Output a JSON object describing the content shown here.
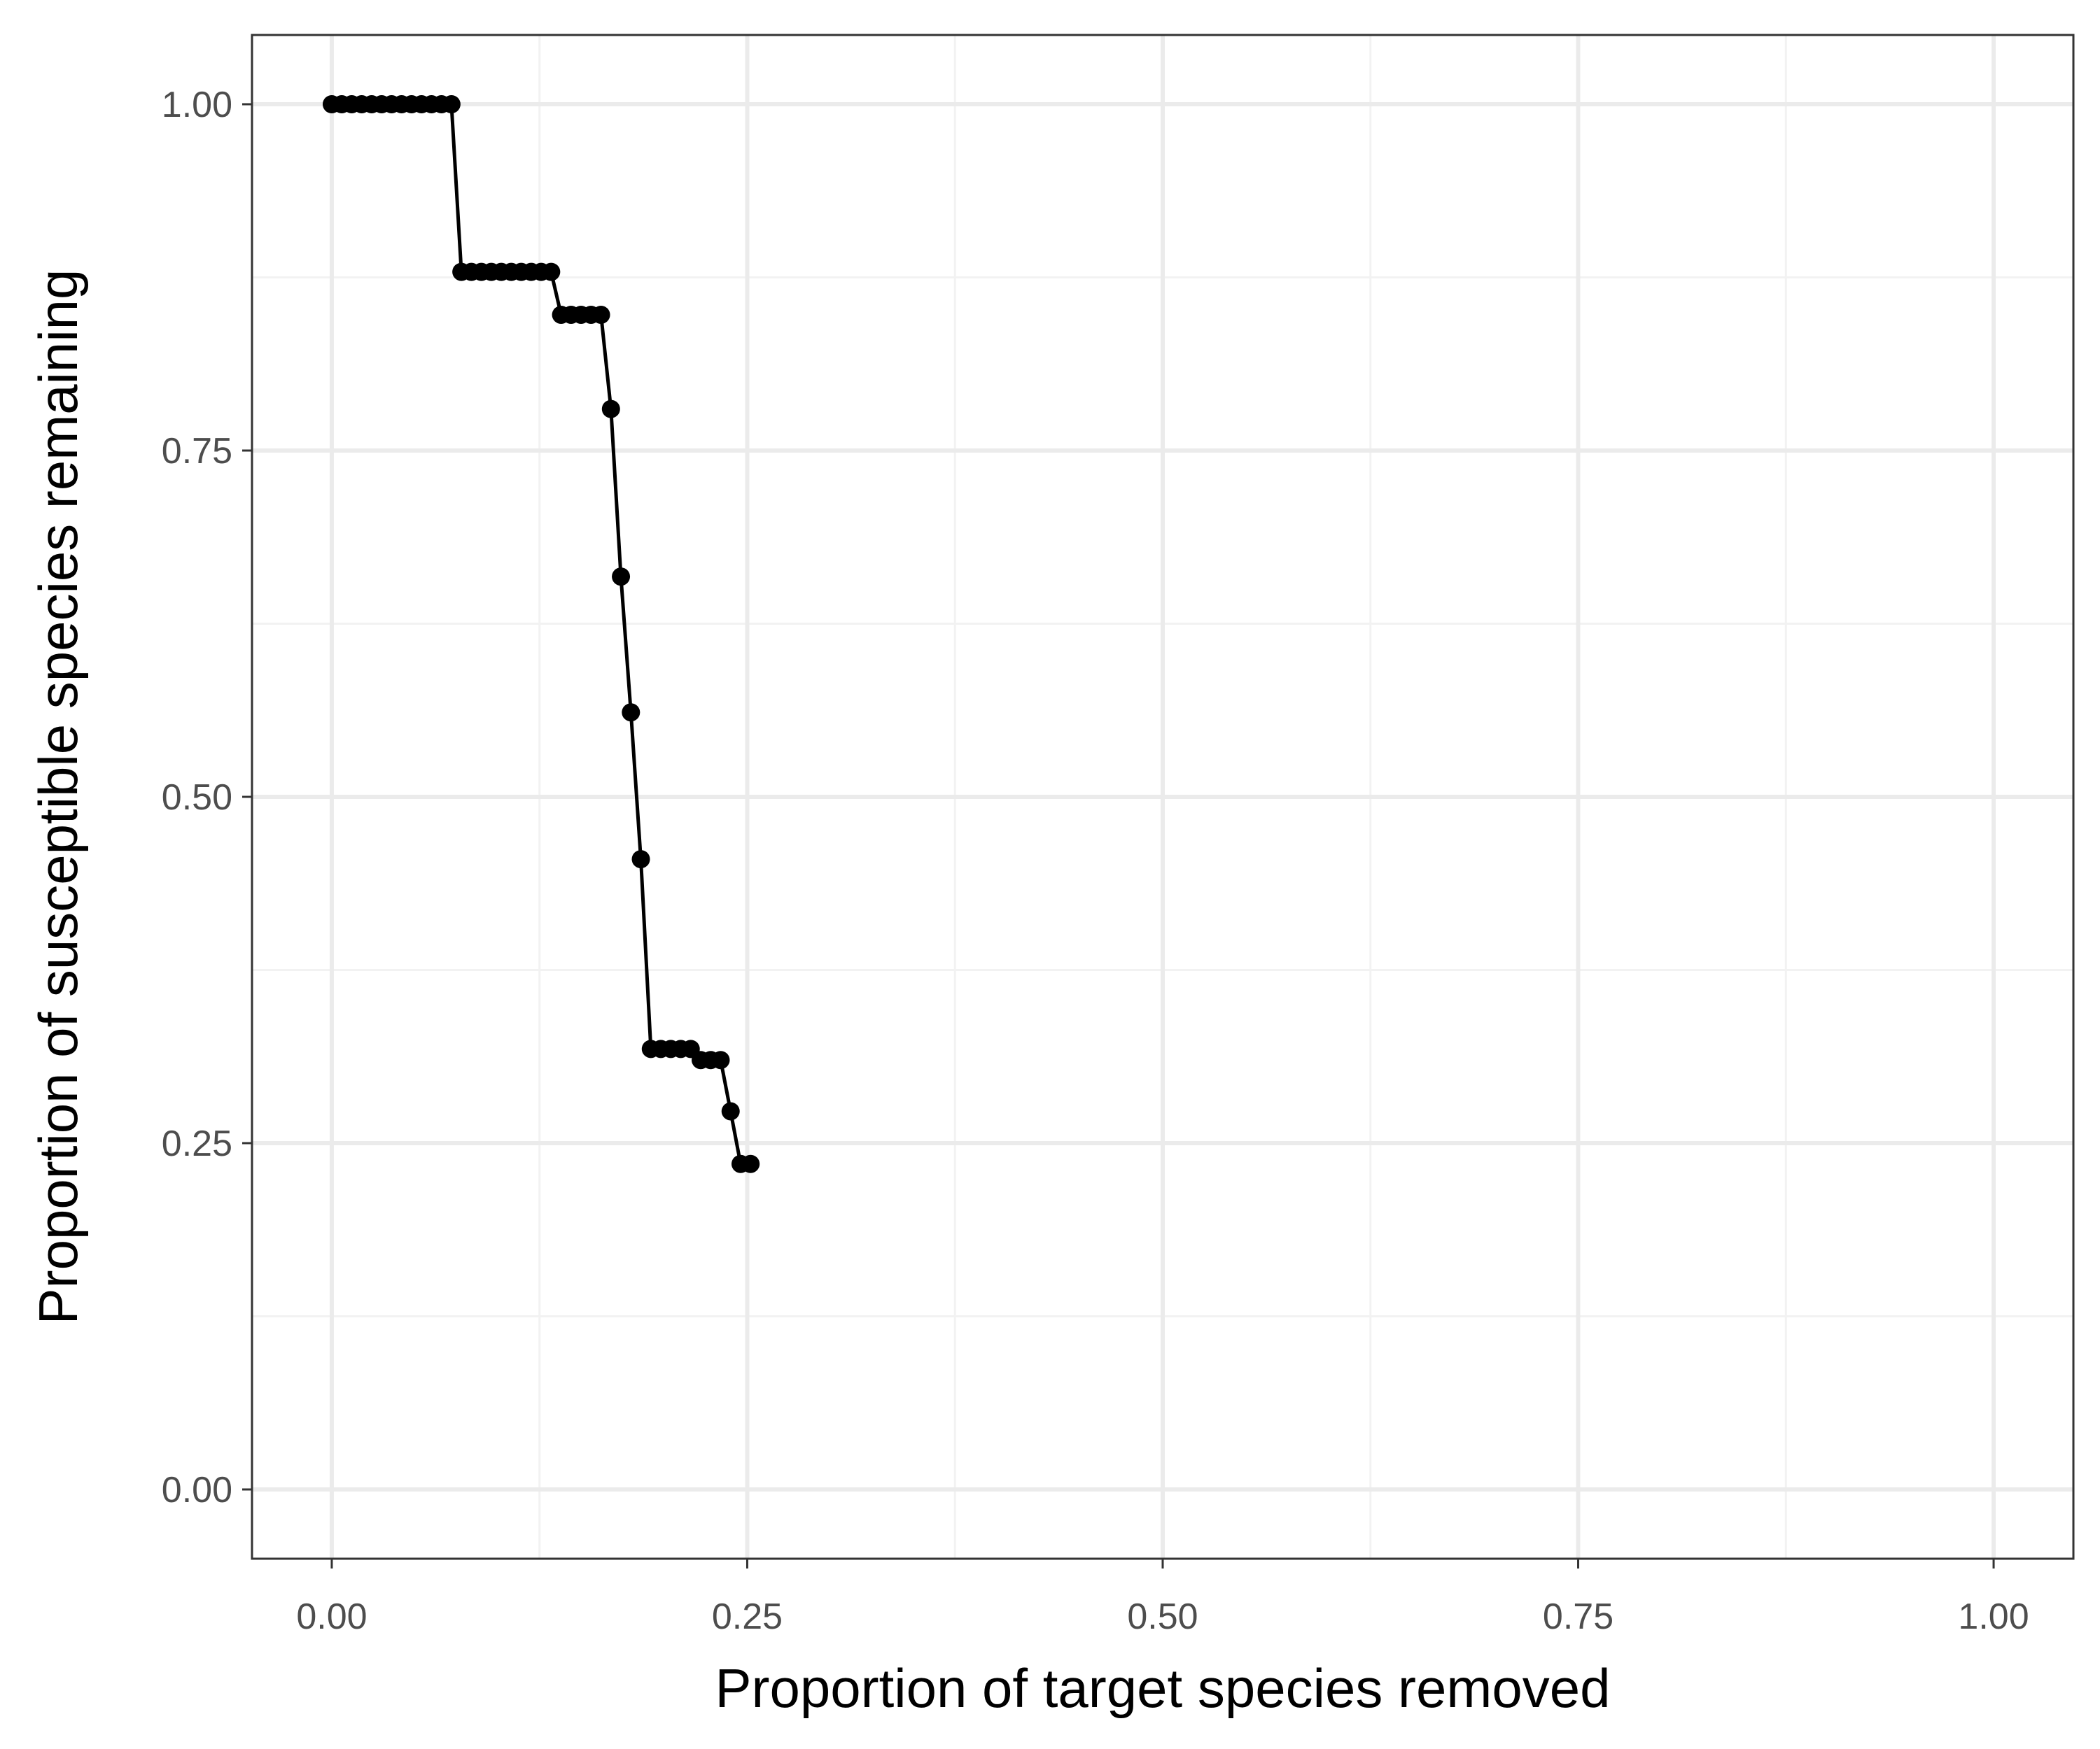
{
  "chart_data": {
    "type": "line",
    "title": "",
    "xlabel": "Proportion of target species removed",
    "ylabel": "Proportion of susceptible species remaining",
    "xlim": [
      -0.048,
      1.048
    ],
    "ylim": [
      -0.05,
      1.05
    ],
    "x_ticks": [
      0,
      0.25,
      0.5,
      0.75,
      1
    ],
    "x_tick_labels": [
      "0.00",
      "0.25",
      "0.50",
      "0.75",
      "1.00"
    ],
    "y_ticks": [
      0,
      0.25,
      0.5,
      0.75,
      1
    ],
    "y_tick_labels": [
      "0.00",
      "0.25",
      "0.50",
      "0.75",
      "1.00"
    ],
    "x_minor": [
      0.125,
      0.375,
      0.625,
      0.875
    ],
    "y_minor": [
      0.125,
      0.375,
      0.625,
      0.875
    ],
    "grid": true,
    "legend": "none",
    "colors": {
      "line": "#000000",
      "points": "#000000",
      "grid_major": "#ebebeb",
      "grid_minor": "#f2f2f2",
      "panel_border": "#333333",
      "tick_label": "#4d4d4d"
    },
    "series": [
      {
        "x": [
          0,
          0.006,
          0.012,
          0.018,
          0.024,
          0.03,
          0.036,
          0.042,
          0.048,
          0.054,
          0.06,
          0.066,
          0.072,
          0.078,
          0.084,
          0.09,
          0.096,
          0.102,
          0.108,
          0.114,
          0.12,
          0.126,
          0.132,
          0.138,
          0.144,
          0.15,
          0.156,
          0.162,
          0.168,
          0.174,
          0.18,
          0.186,
          0.192,
          0.198,
          0.204,
          0.21,
          0.216,
          0.222,
          0.228,
          0.234,
          0.24,
          0.246,
          0.252
        ],
        "y": [
          1,
          1,
          1,
          1,
          1,
          1,
          1,
          1,
          1,
          1,
          1,
          1,
          1,
          0.879,
          0.879,
          0.879,
          0.879,
          0.879,
          0.879,
          0.879,
          0.879,
          0.879,
          0.879,
          0.848,
          0.848,
          0.848,
          0.848,
          0.848,
          0.78,
          0.659,
          0.561,
          0.455,
          0.318,
          0.318,
          0.318,
          0.318,
          0.318,
          0.31,
          0.31,
          0.31,
          0.273,
          0.235,
          0.235
        ]
      }
    ]
  }
}
